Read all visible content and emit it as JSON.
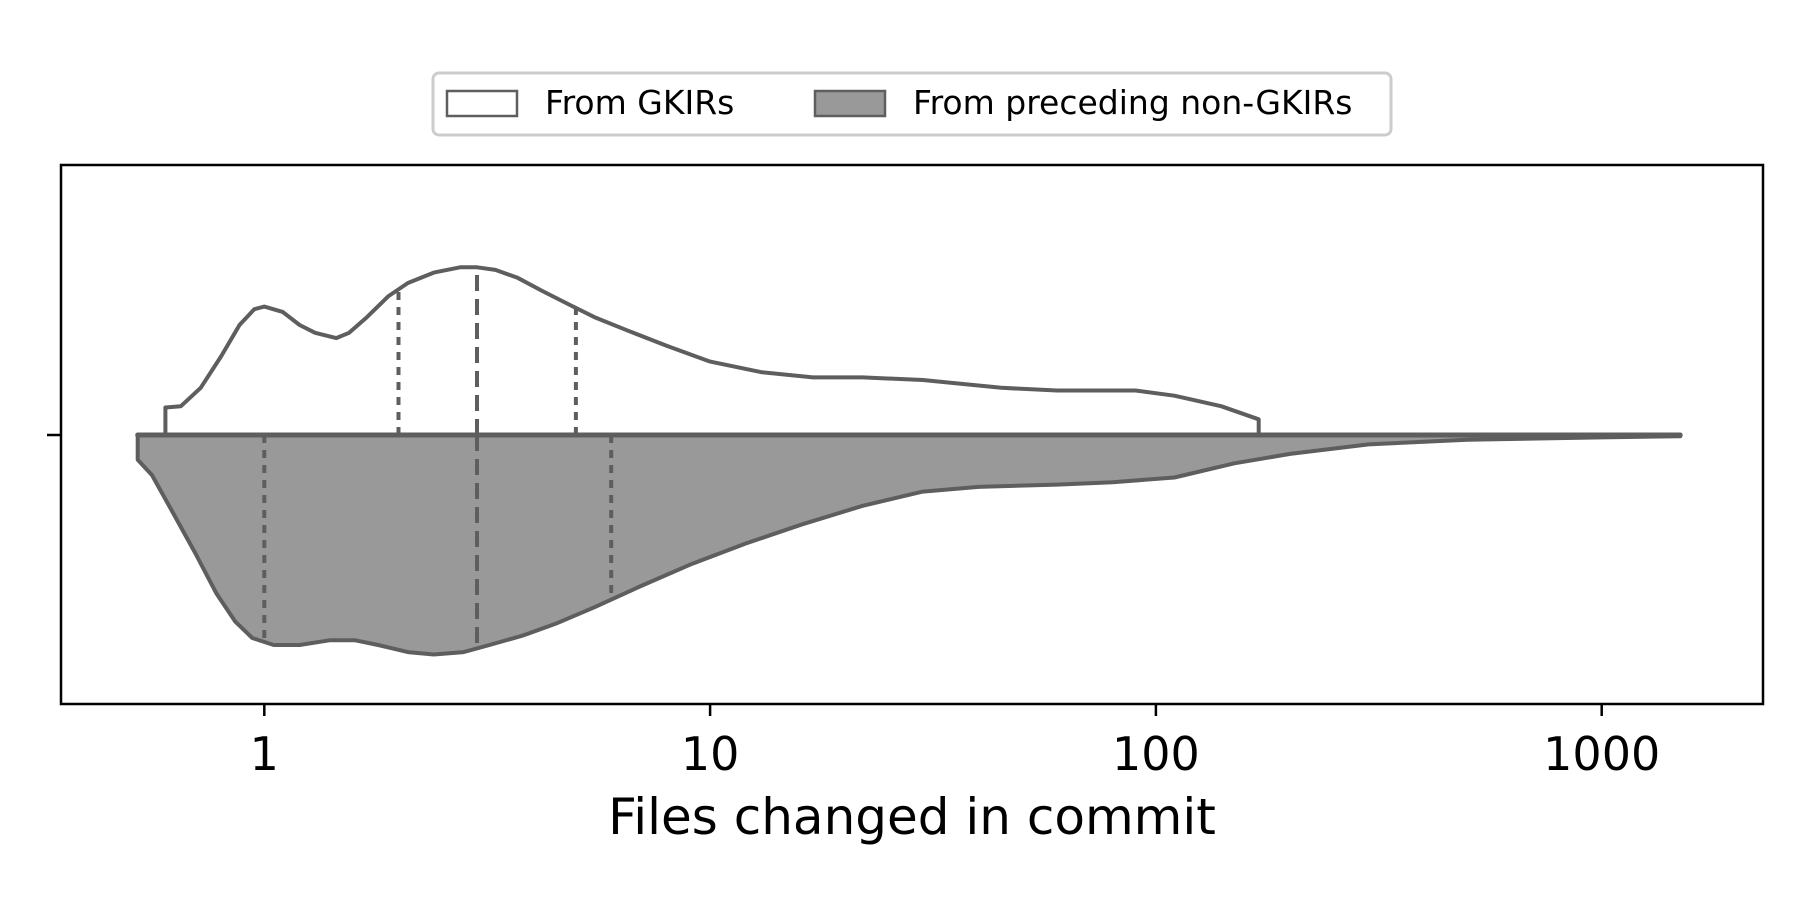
{
  "chart_data": {
    "type": "violin",
    "orientation": "horizontal",
    "split": true,
    "xlabel": "Files changed in commit",
    "x_scale": "log",
    "xlim": [
      0.35,
      2300
    ],
    "x_ticks": [
      1,
      10,
      100,
      1000
    ],
    "x_tick_labels": [
      "1",
      "10",
      "100",
      "1000"
    ],
    "legend_position": "top-center, outside",
    "colors": {
      "outline": "#5e5e5e",
      "gkir_fill": "#ffffff",
      "non_gkir_fill": "#999999",
      "axes": "#000000"
    },
    "series": [
      {
        "name": "From GKIRs",
        "side": "upper",
        "fill": "#ffffff",
        "density": {
          "x": [
            0.6,
            0.6,
            0.65,
            0.72,
            0.8,
            0.88,
            0.95,
            1.0,
            1.1,
            1.2,
            1.3,
            1.45,
            1.55,
            1.7,
            1.9,
            2.1,
            2.4,
            2.75,
            3.0,
            3.3,
            3.7,
            4.2,
            4.8,
            5.5,
            6.5,
            8.0,
            10.0,
            13.0,
            17.0,
            22.0,
            30.0,
            45.0,
            60.0,
            90.0,
            110.0,
            140.0,
            170.0
          ],
          "y": [
            0,
            0.105,
            0.11,
            0.18,
            0.3,
            0.42,
            0.48,
            0.49,
            0.47,
            0.42,
            0.39,
            0.37,
            0.39,
            0.45,
            0.53,
            0.58,
            0.62,
            0.64,
            0.64,
            0.63,
            0.6,
            0.55,
            0.5,
            0.45,
            0.4,
            0.34,
            0.28,
            0.24,
            0.22,
            0.22,
            0.21,
            0.18,
            0.17,
            0.17,
            0.15,
            0.11,
            0.06
          ]
        },
        "quartiles": [
          2.0,
          3.0,
          5.0
        ]
      },
      {
        "name": "From preceding non-GKIRs",
        "side": "lower",
        "fill": "#999999",
        "density": {
          "x": [
            0.52,
            0.52,
            0.56,
            0.62,
            0.7,
            0.78,
            0.86,
            0.94,
            1.05,
            1.2,
            1.4,
            1.6,
            1.8,
            2.1,
            2.4,
            2.8,
            3.2,
            3.8,
            4.5,
            5.5,
            7.0,
            9.0,
            12.0,
            16.0,
            22.0,
            30.0,
            40.0,
            60.0,
            80.0,
            110.0,
            150.0,
            200.0,
            300.0,
            500.0,
            1000.0,
            1500.0
          ],
          "y": [
            0,
            0.105,
            0.17,
            0.32,
            0.5,
            0.67,
            0.79,
            0.86,
            0.89,
            0.89,
            0.87,
            0.87,
            0.89,
            0.92,
            0.93,
            0.92,
            0.89,
            0.85,
            0.8,
            0.73,
            0.64,
            0.55,
            0.46,
            0.38,
            0.3,
            0.24,
            0.22,
            0.21,
            0.2,
            0.18,
            0.12,
            0.08,
            0.04,
            0.02,
            0.01,
            0.005
          ]
        },
        "quartiles": [
          1.0,
          3.0,
          6.0
        ]
      }
    ]
  }
}
